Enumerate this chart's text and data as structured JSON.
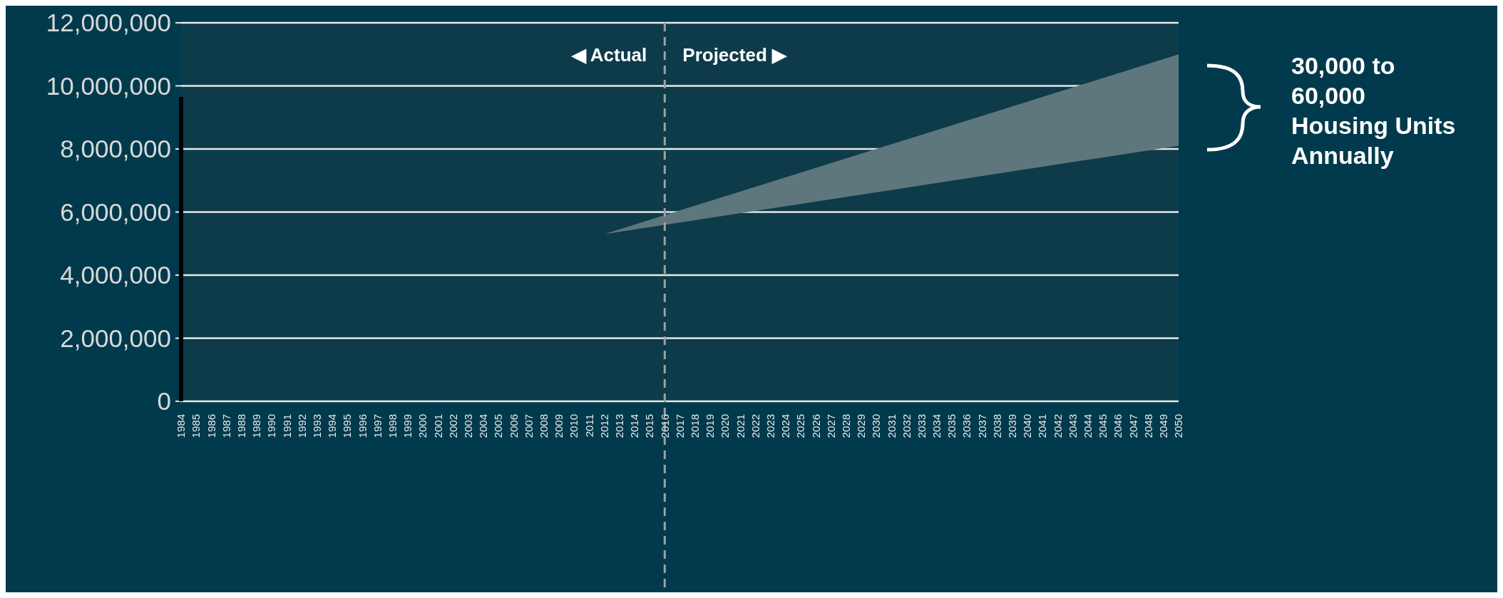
{
  "chart_data": {
    "type": "area",
    "series": [
      {
        "type": "bar",
        "x": [
          1984
        ],
        "values": [
          9650000
        ],
        "color": "#000000"
      },
      {
        "x": [
          2012,
          2050
        ],
        "values": [
          null,
          null
        ],
        "lower": [
          5300000,
          8100000
        ],
        "upper": [
          5300000,
          11000000
        ],
        "color": "#5e777d"
      }
    ],
    "xlim": [
      1984,
      2050
    ],
    "xticks": [
      1984,
      1985,
      1986,
      1987,
      1988,
      1989,
      1990,
      1991,
      1992,
      1993,
      1994,
      1995,
      1996,
      1997,
      1998,
      1999,
      2000,
      2001,
      2002,
      2003,
      2004,
      2005,
      2006,
      2007,
      2008,
      2009,
      2010,
      2011,
      2012,
      2013,
      2014,
      2015,
      2016,
      2017,
      2018,
      2019,
      2020,
      2021,
      2022,
      2023,
      2024,
      2025,
      2026,
      2027,
      2028,
      2029,
      2030,
      2031,
      2032,
      2033,
      2034,
      2035,
      2036,
      2037,
      2038,
      2039,
      2040,
      2041,
      2042,
      2043,
      2044,
      2045,
      2046,
      2047,
      2048,
      2049,
      2050
    ],
    "ylim": [
      0,
      12000000
    ],
    "yticks": [
      {
        "value": 0,
        "label": "0"
      },
      {
        "value": 2000000,
        "label": "2,000,000"
      },
      {
        "value": 4000000,
        "label": "4,000,000"
      },
      {
        "value": 6000000,
        "label": "6,000,000"
      },
      {
        "value": 8000000,
        "label": "8,000,000"
      },
      {
        "value": 10000000,
        "label": "10,000,000"
      },
      {
        "value": 12000000,
        "label": "12,000,000"
      }
    ],
    "grid": "y",
    "ref_lines": [
      {
        "axis": "x",
        "value": 2016,
        "line_style": "dashed",
        "color": "#a0a0a0"
      }
    ],
    "annotations": [
      "◀ Actual",
      "Projected ▶",
      "30,000 to 60,000 Housing Units Annually"
    ]
  }
}
